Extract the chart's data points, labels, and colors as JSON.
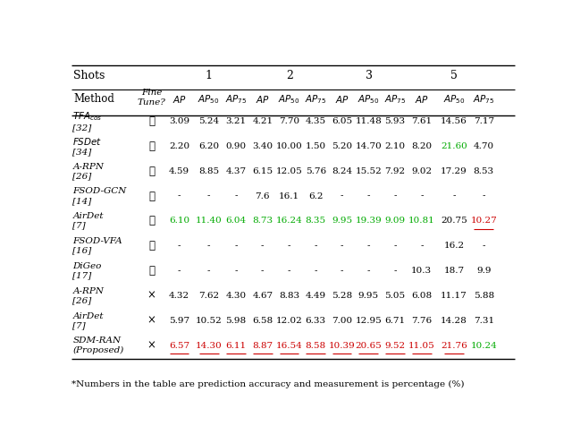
{
  "footnote": "*Numbers in the table are prediction accuracy and measurement is percentage (%)",
  "rows": [
    {
      "method": "$TFA_{cos}$\n[32]",
      "finetune": "✓",
      "values": [
        "3.09",
        "5.24",
        "3.21",
        "4.21",
        "7.70",
        "4.35",
        "6.05",
        "11.48",
        "5.93",
        "7.61",
        "14.56",
        "7.17"
      ],
      "colors": [
        "k",
        "k",
        "k",
        "k",
        "k",
        "k",
        "k",
        "k",
        "k",
        "k",
        "k",
        "k"
      ],
      "underline": [
        false,
        false,
        false,
        false,
        false,
        false,
        false,
        false,
        false,
        false,
        false,
        false
      ]
    },
    {
      "method": "$FSDet$\n[34]",
      "finetune": "✓",
      "values": [
        "2.20",
        "6.20",
        "0.90",
        "3.40",
        "10.00",
        "1.50",
        "5.20",
        "14.70",
        "2.10",
        "8.20",
        "21.60",
        "4.70"
      ],
      "colors": [
        "k",
        "k",
        "k",
        "k",
        "k",
        "k",
        "k",
        "k",
        "k",
        "k",
        "green",
        "k"
      ],
      "underline": [
        false,
        false,
        false,
        false,
        false,
        false,
        false,
        false,
        false,
        false,
        false,
        false
      ]
    },
    {
      "method": "A-RPN\n[26]",
      "finetune": "✓",
      "values": [
        "4.59",
        "8.85",
        "4.37",
        "6.15",
        "12.05",
        "5.76",
        "8.24",
        "15.52",
        "7.92",
        "9.02",
        "17.29",
        "8.53"
      ],
      "colors": [
        "k",
        "k",
        "k",
        "k",
        "k",
        "k",
        "k",
        "k",
        "k",
        "k",
        "k",
        "k"
      ],
      "underline": [
        false,
        false,
        false,
        false,
        false,
        false,
        false,
        false,
        false,
        false,
        false,
        false
      ]
    },
    {
      "method": "FSOD-GCN\n[14]",
      "finetune": "✓",
      "values": [
        "-",
        "-",
        "-",
        "7.6",
        "16.1",
        "6.2",
        "-",
        "-",
        "-",
        "-",
        "-",
        "-"
      ],
      "colors": [
        "k",
        "k",
        "k",
        "k",
        "k",
        "k",
        "k",
        "k",
        "k",
        "k",
        "k",
        "k"
      ],
      "underline": [
        false,
        false,
        false,
        false,
        false,
        false,
        false,
        false,
        false,
        false,
        false,
        false
      ]
    },
    {
      "method": "AirDet\n[7]",
      "finetune": "✓",
      "values": [
        "6.10",
        "11.40",
        "6.04",
        "8.73",
        "16.24",
        "8.35",
        "9.95",
        "19.39",
        "9.09",
        "10.81",
        "20.75",
        "10.27"
      ],
      "colors": [
        "green",
        "green",
        "green",
        "green",
        "green",
        "green",
        "green",
        "green",
        "green",
        "green",
        "k",
        "red"
      ],
      "underline": [
        false,
        false,
        false,
        false,
        false,
        false,
        false,
        false,
        false,
        false,
        false,
        true
      ]
    },
    {
      "method": "FSOD-VFA\n[16]",
      "finetune": "✓",
      "values": [
        "-",
        "-",
        "-",
        "-",
        "-",
        "-",
        "-",
        "-",
        "-",
        "-",
        "16.2",
        "-"
      ],
      "colors": [
        "k",
        "k",
        "k",
        "k",
        "k",
        "k",
        "k",
        "k",
        "k",
        "k",
        "k",
        "k"
      ],
      "underline": [
        false,
        false,
        false,
        false,
        false,
        false,
        false,
        false,
        false,
        false,
        false,
        false
      ]
    },
    {
      "method": "DiGeo\n[17]",
      "finetune": "✓",
      "values": [
        "-",
        "-",
        "-",
        "-",
        "-",
        "-",
        "-",
        "-",
        "-",
        "10.3",
        "18.7",
        "9.9"
      ],
      "colors": [
        "k",
        "k",
        "k",
        "k",
        "k",
        "k",
        "k",
        "k",
        "k",
        "k",
        "k",
        "k"
      ],
      "underline": [
        false,
        false,
        false,
        false,
        false,
        false,
        false,
        false,
        false,
        false,
        false,
        false
      ]
    },
    {
      "method": "A-RPN\n[26]",
      "finetune": "×",
      "values": [
        "4.32",
        "7.62",
        "4.30",
        "4.67",
        "8.83",
        "4.49",
        "5.28",
        "9.95",
        "5.05",
        "6.08",
        "11.17",
        "5.88"
      ],
      "colors": [
        "k",
        "k",
        "k",
        "k",
        "k",
        "k",
        "k",
        "k",
        "k",
        "k",
        "k",
        "k"
      ],
      "underline": [
        false,
        false,
        false,
        false,
        false,
        false,
        false,
        false,
        false,
        false,
        false,
        false
      ]
    },
    {
      "method": "AirDet\n[7]",
      "finetune": "×",
      "values": [
        "5.97",
        "10.52",
        "5.98",
        "6.58",
        "12.02",
        "6.33",
        "7.00",
        "12.95",
        "6.71",
        "7.76",
        "14.28",
        "7.31"
      ],
      "colors": [
        "k",
        "k",
        "k",
        "k",
        "k",
        "k",
        "k",
        "k",
        "k",
        "k",
        "k",
        "k"
      ],
      "underline": [
        false,
        false,
        false,
        false,
        false,
        false,
        false,
        false,
        false,
        false,
        false,
        false
      ]
    },
    {
      "method": "SDM-RAN\n(Proposed)",
      "finetune": "×",
      "values": [
        "6.57",
        "14.30",
        "6.11",
        "8.87",
        "16.54",
        "8.58",
        "10.39",
        "20.65",
        "9.52",
        "11.05",
        "21.76",
        "10.24"
      ],
      "colors": [
        "red",
        "red",
        "red",
        "red",
        "red",
        "red",
        "red",
        "red",
        "red",
        "red",
        "red",
        "green"
      ],
      "underline": [
        true,
        true,
        true,
        true,
        true,
        true,
        true,
        true,
        true,
        true,
        true,
        false
      ]
    }
  ],
  "color_map": {
    "k": "black",
    "green": "#00aa00",
    "red": "#cc0000"
  }
}
